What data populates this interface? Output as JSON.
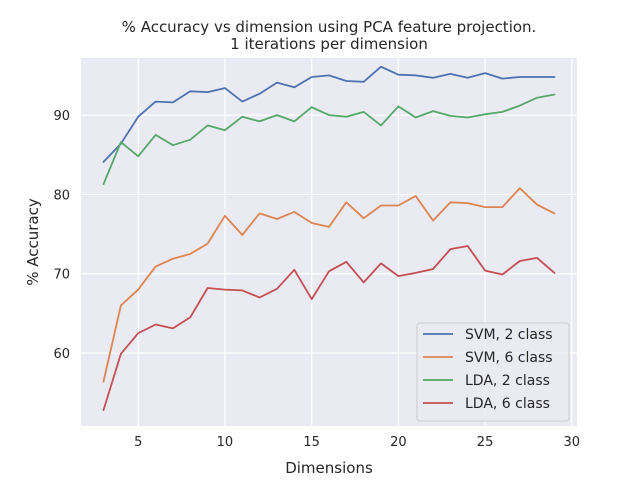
{
  "chart_data": {
    "type": "line",
    "title": [
      "% Accuracy vs dimension using PCA feature projection.",
      "1 iterations per dimension"
    ],
    "xlabel": "Dimensions",
    "ylabel": "% Accuracy",
    "xlim": [
      1.7,
      30.3
    ],
    "ylim": [
      50.8,
      97.2
    ],
    "xticks": [
      5,
      10,
      15,
      20,
      25,
      30
    ],
    "yticks": [
      60,
      70,
      80,
      90
    ],
    "grid": true,
    "legend_position": "bottom-right",
    "x": [
      3,
      4,
      5,
      6,
      7,
      8,
      9,
      10,
      11,
      12,
      13,
      14,
      15,
      16,
      17,
      18,
      19,
      20,
      21,
      22,
      23,
      24,
      25,
      26,
      27,
      28,
      29
    ],
    "series": [
      {
        "name": "SVM, 2 class",
        "color": "#4c72b0",
        "values": [
          84.1,
          86.4,
          89.8,
          91.7,
          91.6,
          93.0,
          92.9,
          93.4,
          91.7,
          92.7,
          94.1,
          93.5,
          94.8,
          95.0,
          94.3,
          94.2,
          96.1,
          95.1,
          95.0,
          94.7,
          95.2,
          94.7,
          95.3,
          94.6,
          94.8,
          94.8,
          94.8
        ]
      },
      {
        "name": "SVM, 6 class",
        "color": "#dd8452",
        "values": [
          56.4,
          66.0,
          68.0,
          70.9,
          71.9,
          72.5,
          73.8,
          77.3,
          74.9,
          77.6,
          76.9,
          77.8,
          76.4,
          75.9,
          79.0,
          77.0,
          78.6,
          78.6,
          79.8,
          76.7,
          79.0,
          78.9,
          78.4,
          78.4,
          80.8,
          78.7,
          77.6
        ]
      },
      {
        "name": "LDA, 2 class",
        "color": "#55a868",
        "values": [
          81.3,
          86.6,
          84.8,
          87.5,
          86.2,
          86.9,
          88.7,
          88.1,
          89.8,
          89.2,
          90.0,
          89.2,
          91.0,
          90.0,
          89.8,
          90.4,
          88.7,
          91.1,
          89.7,
          90.5,
          89.9,
          89.7,
          90.1,
          90.4,
          91.2,
          92.2,
          92.6
        ]
      },
      {
        "name": "LDA, 6 class",
        "color": "#c44e52",
        "values": [
          52.8,
          59.9,
          62.5,
          63.6,
          63.1,
          64.5,
          68.2,
          68.0,
          67.9,
          67.0,
          68.1,
          70.5,
          66.8,
          70.3,
          71.5,
          68.9,
          71.3,
          69.7,
          70.1,
          70.6,
          73.1,
          73.5,
          70.4,
          69.9,
          71.6,
          72.0,
          70.1
        ]
      }
    ]
  }
}
